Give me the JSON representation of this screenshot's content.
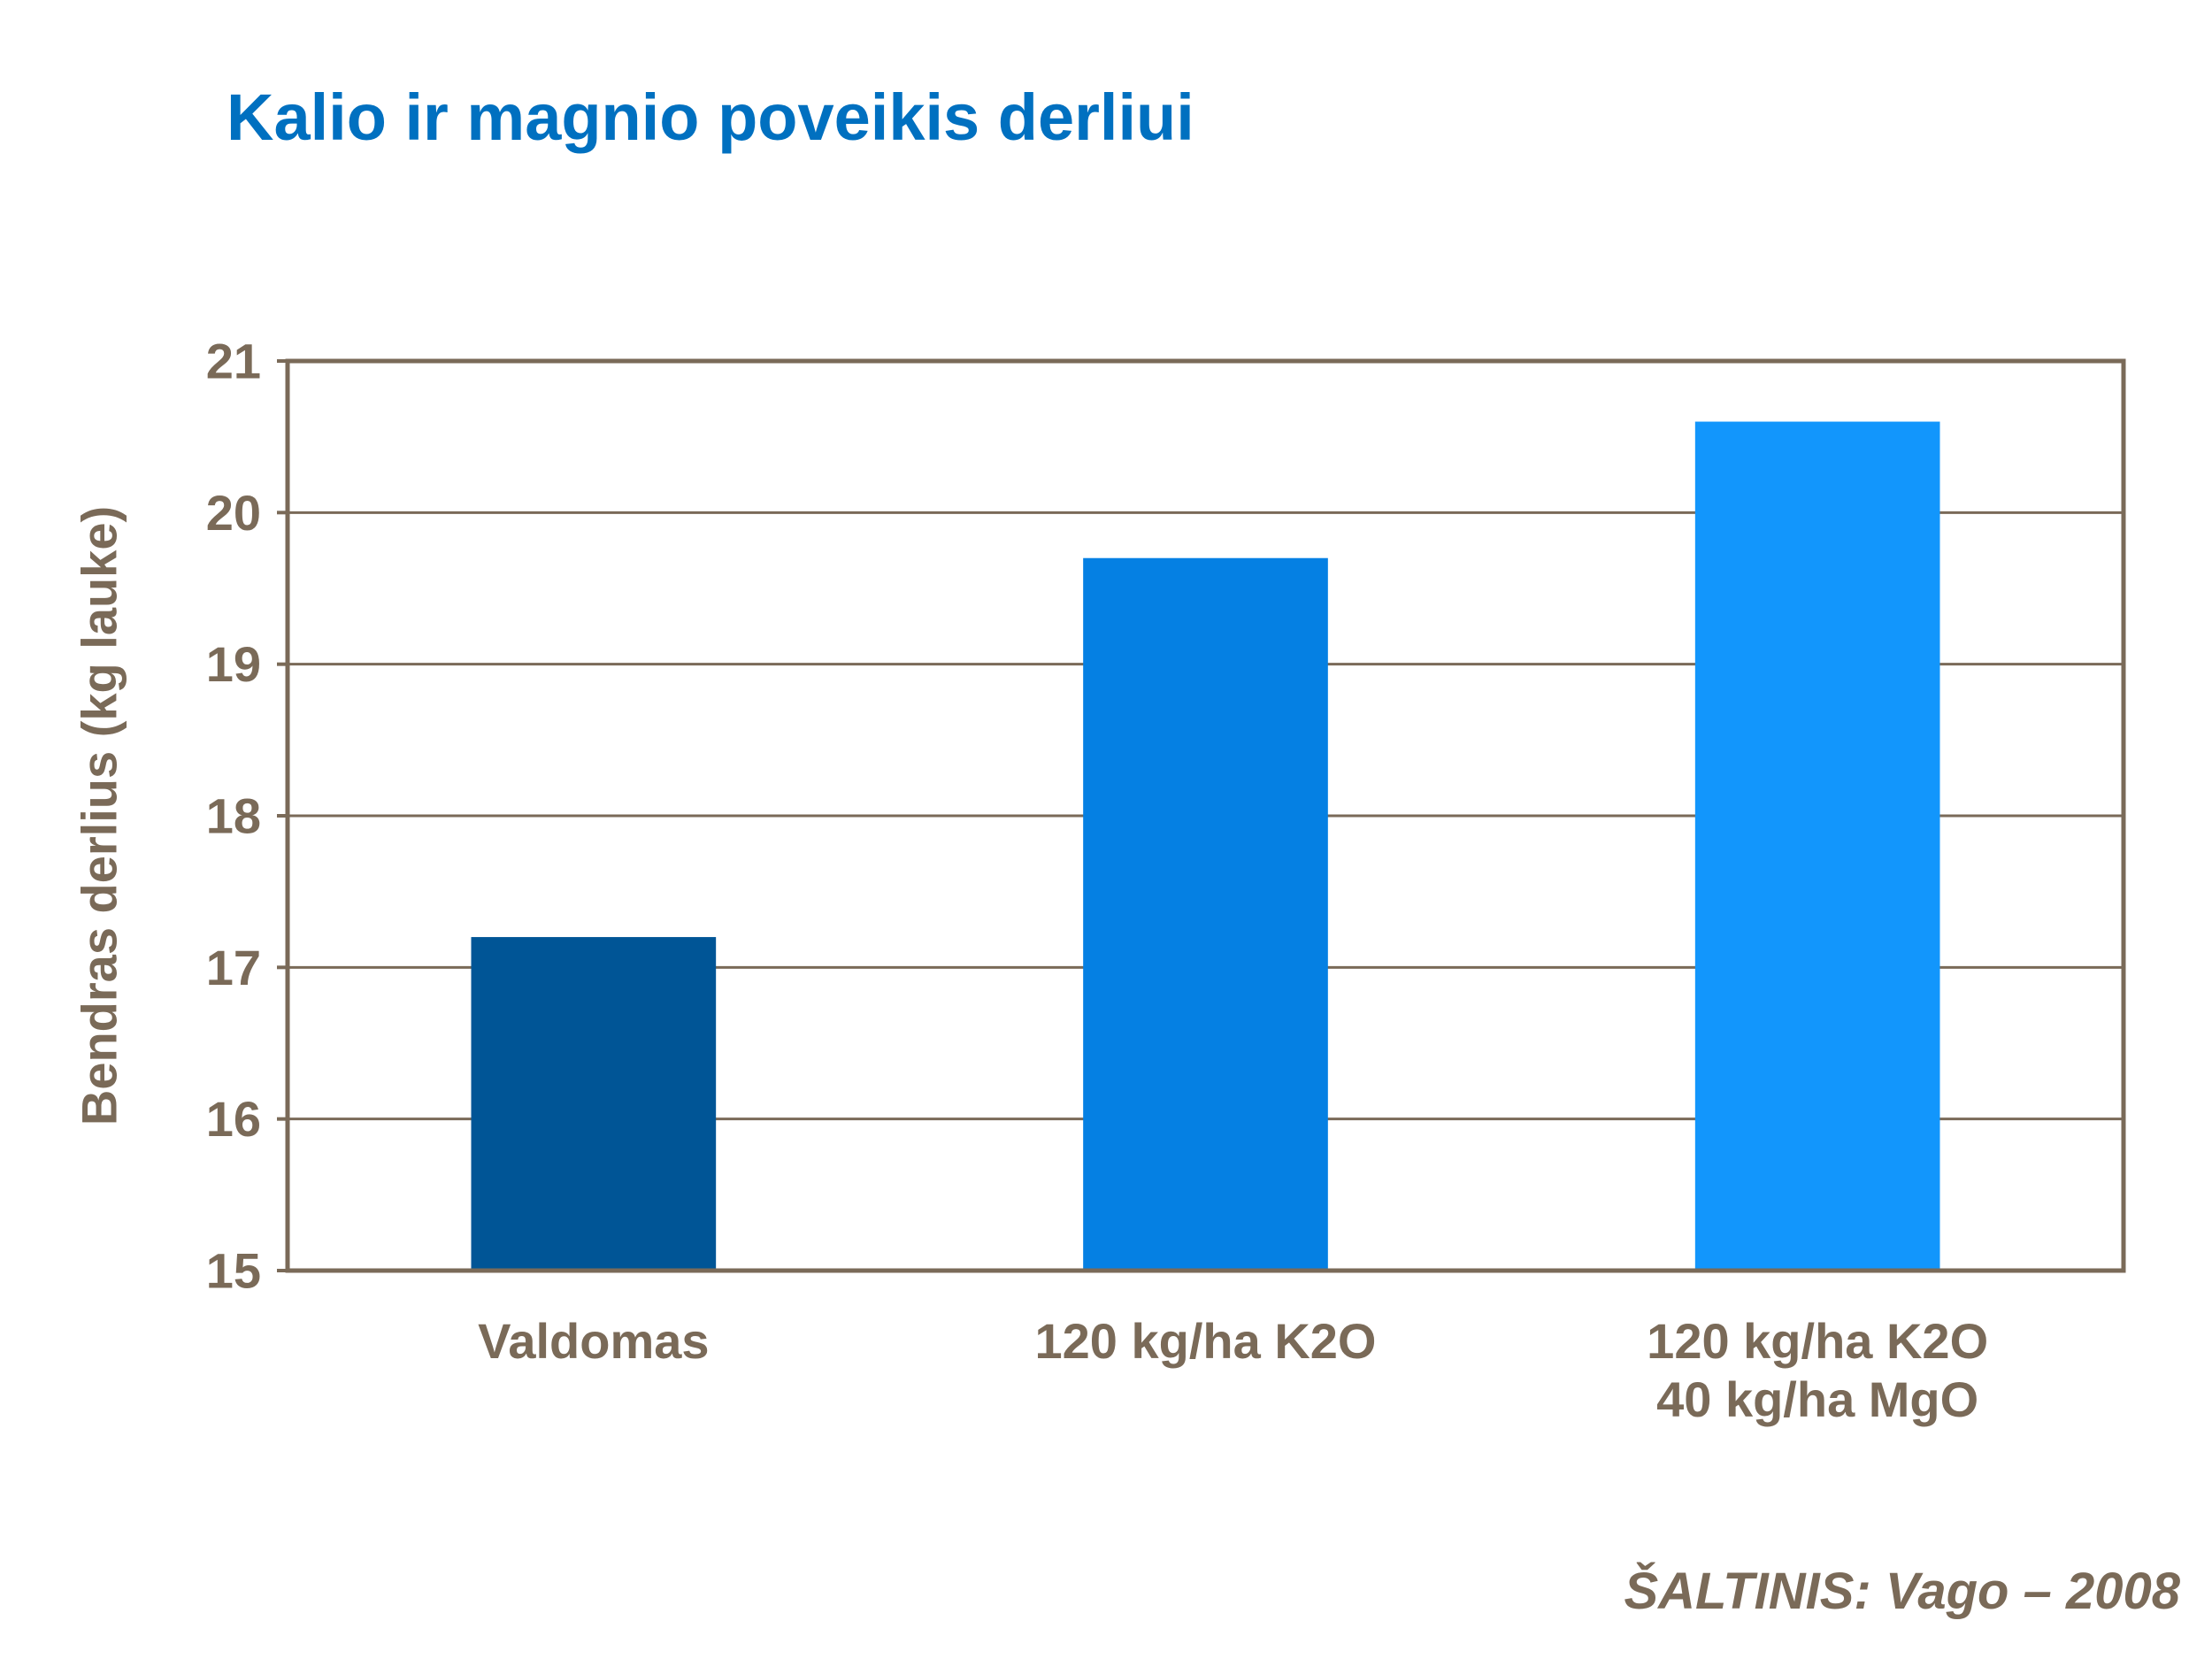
{
  "title": "Kalio ir magnio poveikis derliui",
  "source": "ŠALTINIS:  Vago – 2008",
  "colors": {
    "title": "#0070c0",
    "text": "#7a6a58",
    "axis": "#7a6a58",
    "bars": [
      "#005596",
      "#0580e3",
      "#1296fc"
    ]
  },
  "chart_data": {
    "type": "bar",
    "title": "Kalio ir magnio poveikis derliui",
    "ylabel": "Bendras derlius (kg lauke)",
    "xlabel": "",
    "categories": [
      [
        "Valdomas"
      ],
      [
        "120 kg/ha K2O"
      ],
      [
        "120 kg/ha K2O",
        "40 kg/ha MgO"
      ]
    ],
    "values": [
      17.2,
      19.7,
      20.6
    ],
    "ylim": [
      15,
      21
    ],
    "yticks": [
      15,
      16,
      17,
      18,
      19,
      20,
      21
    ],
    "grid": true,
    "legend": "none"
  }
}
